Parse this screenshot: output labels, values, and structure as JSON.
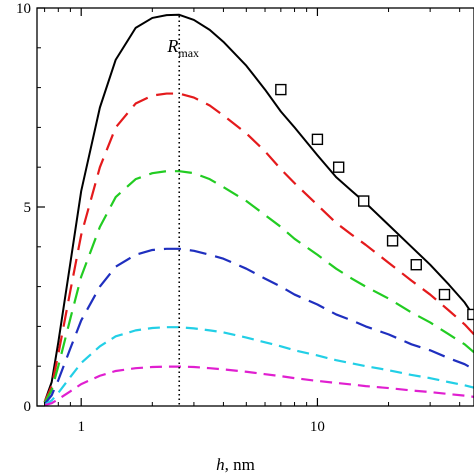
{
  "chart_data": {
    "type": "line",
    "title": "",
    "xlabel": {
      "var": "h",
      "unit": ", nm"
    },
    "ylabel": "",
    "xscale": "log",
    "xlim": [
      0.65,
      46
    ],
    "ylim": [
      0,
      10
    ],
    "grid": false,
    "legend": "none",
    "x_ticks": [
      {
        "value": 1,
        "label": "1"
      },
      {
        "value": 10,
        "label": "10"
      }
    ],
    "y_ticks": [
      {
        "value": 0,
        "label": "0"
      },
      {
        "value": 5,
        "label": "5"
      },
      {
        "value": 10,
        "label": "10"
      }
    ],
    "annotation": {
      "text": "R",
      "subscript": "max",
      "x": 2.6,
      "y_top": 9.8,
      "y_bottom": 0,
      "text_y": 8.9,
      "line_style": "dotted"
    },
    "x": [
      0.7,
      0.75,
      0.8,
      0.9,
      1.0,
      1.2,
      1.4,
      1.7,
      2.0,
      2.3,
      2.6,
      3.0,
      3.5,
      4.0,
      5.0,
      6.0,
      7.0,
      8.0,
      10.0,
      12.0,
      14.0,
      16.0,
      20.0,
      25.0,
      30.0,
      36.0,
      42.0,
      46.0
    ],
    "series": [
      {
        "color": "#000000",
        "dash": "solid",
        "values": [
          0.1,
          0.6,
          1.6,
          3.6,
          5.4,
          7.5,
          8.7,
          9.5,
          9.75,
          9.82,
          9.83,
          9.7,
          9.45,
          9.15,
          8.55,
          7.95,
          7.4,
          7.0,
          6.3,
          5.75,
          5.4,
          5.1,
          4.55,
          4.0,
          3.55,
          3.05,
          2.6,
          2.25
        ]
      },
      {
        "color": "#e41a1c",
        "dash": "long",
        "values": [
          0.1,
          0.5,
          1.3,
          2.9,
          4.3,
          6.0,
          7.0,
          7.6,
          7.8,
          7.85,
          7.85,
          7.75,
          7.55,
          7.3,
          6.85,
          6.4,
          5.95,
          5.6,
          5.05,
          4.6,
          4.3,
          4.05,
          3.6,
          3.15,
          2.8,
          2.4,
          2.05,
          1.8
        ]
      },
      {
        "color": "#22cc22",
        "dash": "long",
        "values": [
          0.08,
          0.4,
          1.0,
          2.2,
          3.25,
          4.5,
          5.25,
          5.7,
          5.85,
          5.9,
          5.9,
          5.85,
          5.7,
          5.5,
          5.15,
          4.8,
          4.5,
          4.2,
          3.8,
          3.45,
          3.2,
          3.0,
          2.7,
          2.35,
          2.1,
          1.8,
          1.55,
          1.35
        ]
      },
      {
        "color": "#1f2fbf",
        "dash": "long",
        "values": [
          0.05,
          0.27,
          0.65,
          1.45,
          2.15,
          3.0,
          3.5,
          3.8,
          3.92,
          3.95,
          3.95,
          3.9,
          3.8,
          3.7,
          3.45,
          3.2,
          3.0,
          2.8,
          2.55,
          2.3,
          2.15,
          2.0,
          1.8,
          1.55,
          1.4,
          1.2,
          1.05,
          0.92
        ]
      },
      {
        "color": "#22cfe6",
        "dash": "medium",
        "values": [
          0.03,
          0.14,
          0.33,
          0.73,
          1.08,
          1.5,
          1.75,
          1.9,
          1.96,
          1.98,
          1.98,
          1.95,
          1.9,
          1.85,
          1.72,
          1.6,
          1.5,
          1.4,
          1.27,
          1.15,
          1.07,
          1.0,
          0.9,
          0.78,
          0.7,
          0.6,
          0.52,
          0.46
        ]
      },
      {
        "color": "#e01fd0",
        "dash": "medium",
        "values": [
          0.02,
          0.07,
          0.17,
          0.37,
          0.55,
          0.76,
          0.88,
          0.95,
          0.98,
          0.99,
          0.99,
          0.98,
          0.95,
          0.92,
          0.86,
          0.8,
          0.75,
          0.7,
          0.63,
          0.58,
          0.54,
          0.5,
          0.45,
          0.39,
          0.35,
          0.3,
          0.26,
          0.23
        ]
      }
    ],
    "markers": {
      "series_index": 0,
      "shape": "open-square",
      "x": [
        7.0,
        10.0,
        12.3,
        15.7,
        20.8,
        26.2,
        34.5,
        45.5
      ],
      "y": [
        7.95,
        6.7,
        6.0,
        5.15,
        4.15,
        3.55,
        2.8,
        2.3
      ]
    }
  }
}
